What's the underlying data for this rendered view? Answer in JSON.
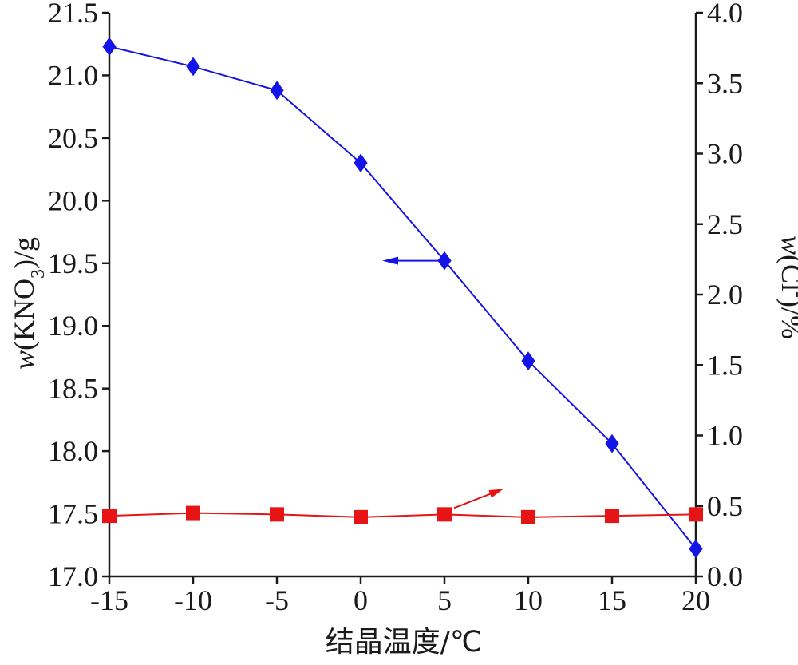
{
  "chart_data": {
    "type": "line",
    "xlabel": "结晶温度/℃",
    "ylabel_left": {
      "italic": "w",
      "main": "(KNO",
      "sub": "3",
      "tail": ")/g"
    },
    "ylabel_right": {
      "italic": "w",
      "main": "(Cl",
      "sup": "-",
      "tail": ")/%"
    },
    "x": [
      -15,
      -10,
      -5,
      0,
      5,
      10,
      15,
      20
    ],
    "x_ticks": [
      "-15",
      "-10",
      "-5",
      "0",
      "5",
      "10",
      "15",
      "20"
    ],
    "xlim": [
      -15,
      20
    ],
    "y_left_ticks": [
      "17.0",
      "17.5",
      "18.0",
      "18.5",
      "19.0",
      "19.5",
      "20.0",
      "20.5",
      "21.0",
      "21.5"
    ],
    "ylim_left": [
      17.0,
      21.5
    ],
    "y_right_ticks": [
      "0.0",
      "0.5",
      "1.0",
      "1.5",
      "2.0",
      "2.5",
      "3.0",
      "3.5",
      "4.0"
    ],
    "ylim_right": [
      0.0,
      4.0
    ],
    "series": [
      {
        "axis": "left",
        "marker": "diamond",
        "color": "#1414e6",
        "values": [
          21.23,
          21.07,
          20.88,
          20.3,
          19.52,
          18.72,
          18.06,
          17.22
        ]
      },
      {
        "axis": "right",
        "marker": "square",
        "color": "#e61414",
        "values": [
          0.43,
          0.45,
          0.44,
          0.42,
          0.44,
          0.42,
          0.43,
          0.44
        ]
      }
    ],
    "annotations": [
      {
        "type": "arrow",
        "series": 0,
        "direction": "left"
      },
      {
        "type": "arrow",
        "series": 1,
        "direction": "right"
      }
    ],
    "grid": false
  }
}
